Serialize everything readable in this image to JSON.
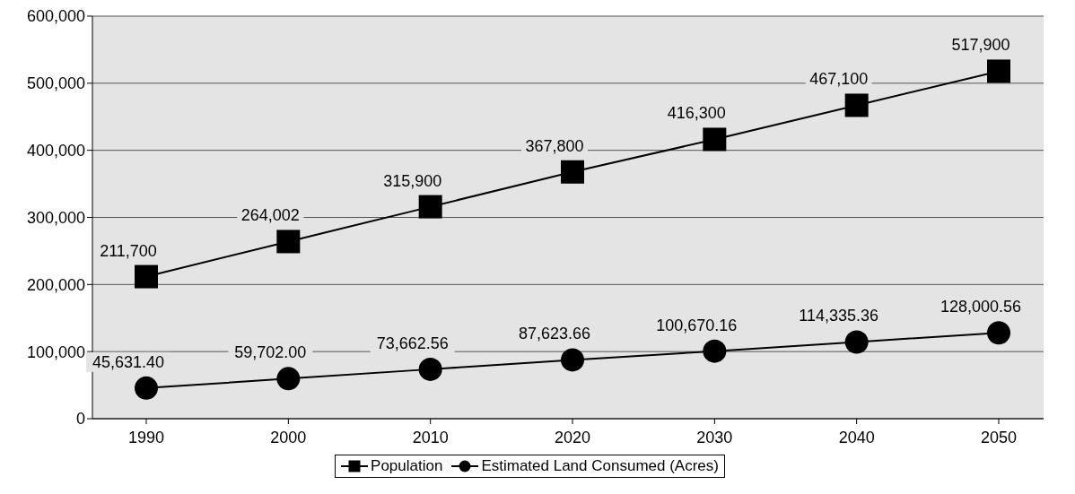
{
  "chart_data": {
    "type": "line",
    "categories": [
      "1990",
      "2000",
      "2010",
      "2020",
      "2030",
      "2040",
      "2050"
    ],
    "series": [
      {
        "name": "Population",
        "color": "#000000",
        "marker": "square",
        "values": [
          211700,
          264002,
          315900,
          367800,
          416300,
          467100,
          517900
        ],
        "value_labels": [
          "211,700",
          "264,002",
          "315,900",
          "367,800",
          "416,300",
          "467,100",
          "517,900"
        ]
      },
      {
        "name": "Estimated Land Consumed (Acres)",
        "color": "#000000",
        "marker": "circle",
        "values": [
          45631.4,
          59702.0,
          73662.56,
          87623.66,
          100670.16,
          114335.36,
          128000.56
        ],
        "value_labels": [
          "45,631.40",
          "59,702.00",
          "73,662.56",
          "87,623.66",
          "100,670.16",
          "114,335.36",
          "128,000.56"
        ]
      }
    ],
    "ylim": [
      0,
      600000
    ],
    "yticks": [
      {
        "value": 0,
        "label": "0"
      },
      {
        "value": 100000,
        "label": "100,000"
      },
      {
        "value": 200000,
        "label": "200,000"
      },
      {
        "value": 300000,
        "label": "300,000"
      },
      {
        "value": 400000,
        "label": "400,000"
      },
      {
        "value": 500000,
        "label": "500,000"
      },
      {
        "value": 600000,
        "label": "600,000"
      }
    ],
    "grid": "y",
    "legend": "bottom",
    "line_style": "solid"
  }
}
